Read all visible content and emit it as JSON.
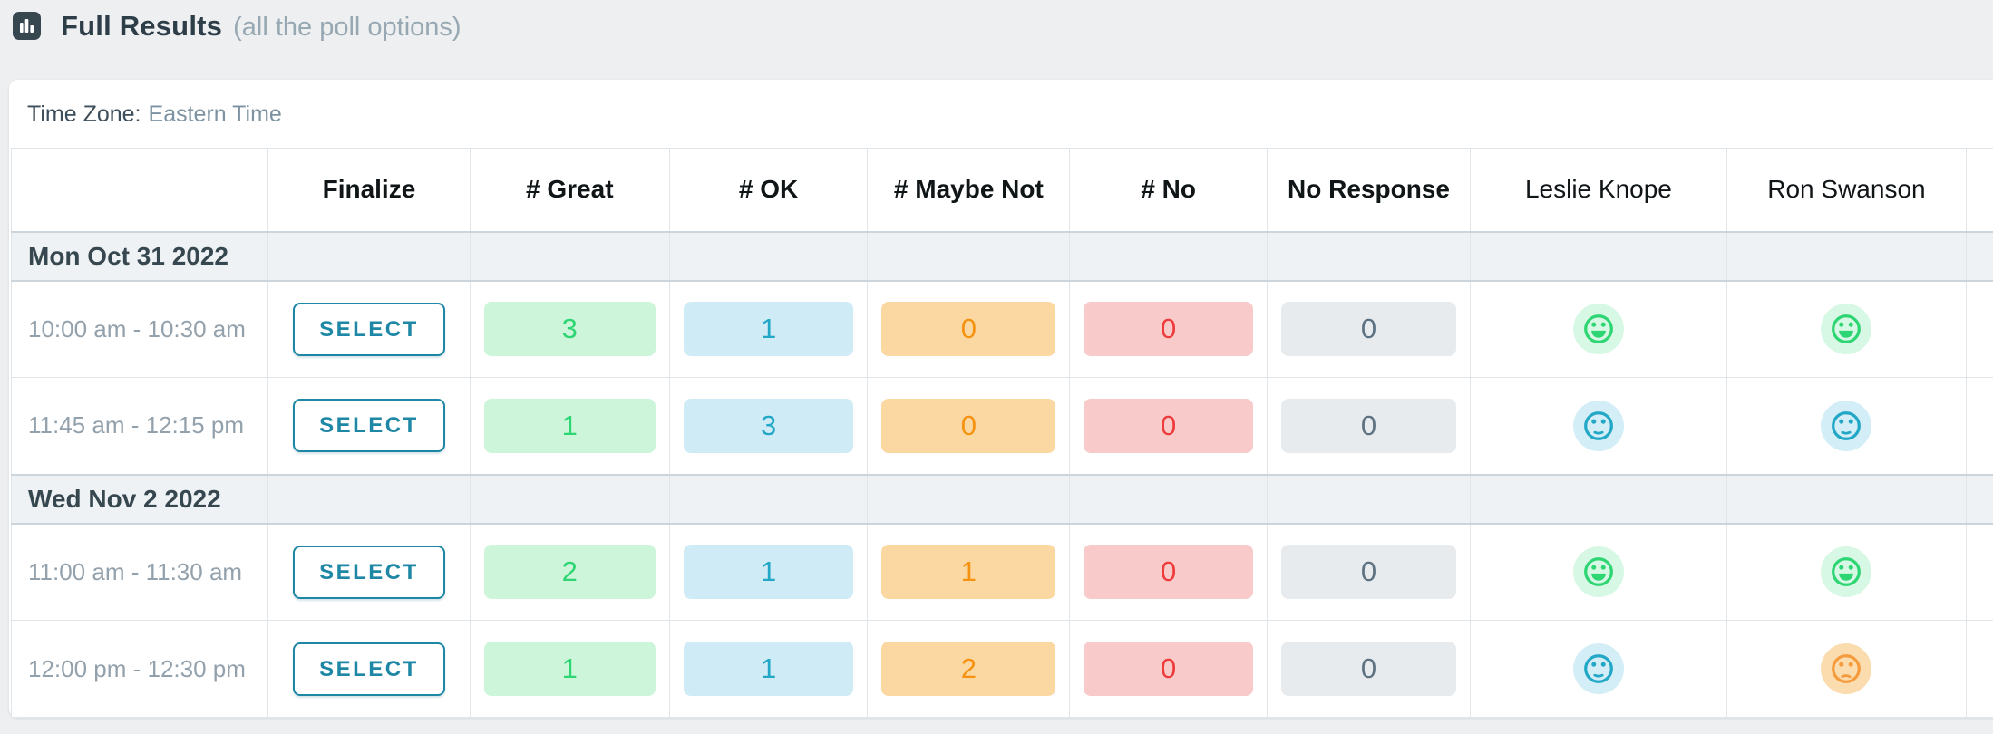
{
  "header": {
    "title": "Full Results",
    "subtitle": "(all the poll options)",
    "icon": "bar-chart-icon",
    "icon_bg": "#36474f"
  },
  "card": {
    "time_zone_label": "Time Zone:",
    "time_zone_value": "Eastern Time"
  },
  "table": {
    "columns": [
      {
        "key": "time",
        "label": "",
        "bold": false
      },
      {
        "key": "finalize",
        "label": "Finalize",
        "bold": true
      },
      {
        "key": "great",
        "label": "# Great",
        "bold": true
      },
      {
        "key": "ok",
        "label": "# OK",
        "bold": true
      },
      {
        "key": "maybe_not",
        "label": "# Maybe Not",
        "bold": true
      },
      {
        "key": "no",
        "label": "# No",
        "bold": true
      },
      {
        "key": "no_response",
        "label": "No Response",
        "bold": true
      },
      {
        "key": "leslie",
        "label": "Leslie Knope",
        "bold": false
      },
      {
        "key": "ron",
        "label": "Ron Swanson",
        "bold": false
      },
      {
        "key": "overflow",
        "label": "",
        "bold": false
      }
    ],
    "count_keys": [
      "great",
      "ok",
      "maybe_not",
      "no",
      "no_response"
    ],
    "voter_keys": [
      "leslie",
      "ron"
    ],
    "select_label": "SELECT",
    "groups": [
      {
        "date": "Mon Oct 31 2022",
        "rows": [
          {
            "time": "10:00 am - 10:30 am",
            "counts": {
              "great": 3,
              "ok": 1,
              "maybe_not": 0,
              "no": 0,
              "no_response": 0
            },
            "votes": {
              "leslie": "great",
              "ron": "great"
            }
          },
          {
            "time": "11:45 am - 12:15 pm",
            "counts": {
              "great": 1,
              "ok": 3,
              "maybe_not": 0,
              "no": 0,
              "no_response": 0
            },
            "votes": {
              "leslie": "ok",
              "ron": "ok"
            }
          }
        ]
      },
      {
        "date": "Wed Nov 2 2022",
        "rows": [
          {
            "time": "11:00 am - 11:30 am",
            "counts": {
              "great": 2,
              "ok": 1,
              "maybe_not": 1,
              "no": 0,
              "no_response": 0
            },
            "votes": {
              "leslie": "great",
              "ron": "great"
            }
          },
          {
            "time": "12:00 pm - 12:30 pm",
            "counts": {
              "great": 1,
              "ok": 1,
              "maybe_not": 2,
              "no": 0,
              "no_response": 0
            },
            "votes": {
              "leslie": "ok",
              "ron": "maybe_not"
            }
          }
        ]
      }
    ]
  },
  "colors": {
    "accent": "#1e87a5",
    "pills": {
      "great": {
        "bg": "#ccf5da",
        "text": "#2ed573"
      },
      "ok": {
        "bg": "#cfebf5",
        "text": "#22a7c7"
      },
      "maybe_not": {
        "bg": "#fbd8a2",
        "text": "#f5920f"
      },
      "no": {
        "bg": "#f8caca",
        "text": "#ee3b3b"
      },
      "no_response": {
        "bg": "#e8ebee",
        "text": "#5d7283"
      }
    },
    "faces": {
      "great": {
        "stroke": "#2ed573",
        "halo": "#d7f8e4"
      },
      "ok": {
        "stroke": "#22a7c7",
        "halo": "#d3eef6"
      },
      "maybe_not": {
        "stroke": "#f59b3c",
        "halo": "#fbdcae"
      }
    }
  }
}
